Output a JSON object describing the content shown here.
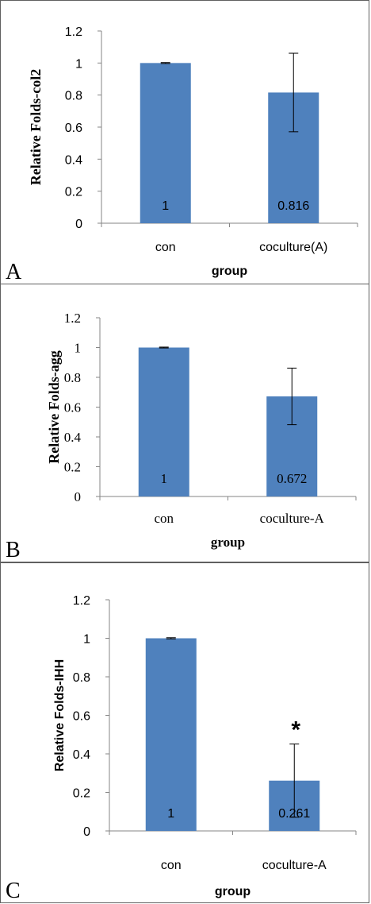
{
  "colors": {
    "bar": "#4F81BD",
    "axis": "#868686",
    "errorbar": "#000000",
    "border": "#606060"
  },
  "chart_data": [
    {
      "type": "bar",
      "panel_label": "A",
      "categories": [
        "con",
        "coculture(A)"
      ],
      "values": [
        1,
        0.816
      ],
      "error": [
        0.003,
        0.245
      ],
      "data_labels": [
        "1",
        "0.816"
      ],
      "annotations": [
        "",
        ""
      ],
      "xlabel": "group",
      "ylabel": "Relative Folds-col2",
      "ylim": [
        0,
        1.2
      ],
      "yticks": [
        "0",
        "0.2",
        "0.4",
        "0.6",
        "0.8",
        "1",
        "1.2"
      ],
      "grid": false,
      "legend": "none"
    },
    {
      "type": "bar",
      "panel_label": "B",
      "categories": [
        "con",
        "coculture-A"
      ],
      "values": [
        1,
        0.672
      ],
      "error": [
        0.003,
        0.19
      ],
      "data_labels": [
        "1",
        "0.672"
      ],
      "annotations": [
        "",
        ""
      ],
      "xlabel": "group",
      "ylabel": "Relative Folds-agg",
      "ylim": [
        0,
        1.2
      ],
      "yticks": [
        "0",
        "0.2",
        "0.4",
        "0.6",
        "0.8",
        "1",
        "1.2"
      ],
      "grid": false,
      "legend": "none"
    },
    {
      "type": "bar",
      "panel_label": "C",
      "categories": [
        "con",
        "coculture-A"
      ],
      "values": [
        1,
        0.261
      ],
      "error": [
        0.003,
        0.19
      ],
      "data_labels": [
        "1",
        "0.261"
      ],
      "annotations": [
        "",
        "*"
      ],
      "xlabel": "group",
      "ylabel": "Relative Folds-IHH",
      "ylim": [
        0,
        1.2
      ],
      "yticks": [
        "0",
        "0.2",
        "0.4",
        "0.6",
        "0.8",
        "1",
        "1.2"
      ],
      "grid": false,
      "legend": "none"
    }
  ]
}
